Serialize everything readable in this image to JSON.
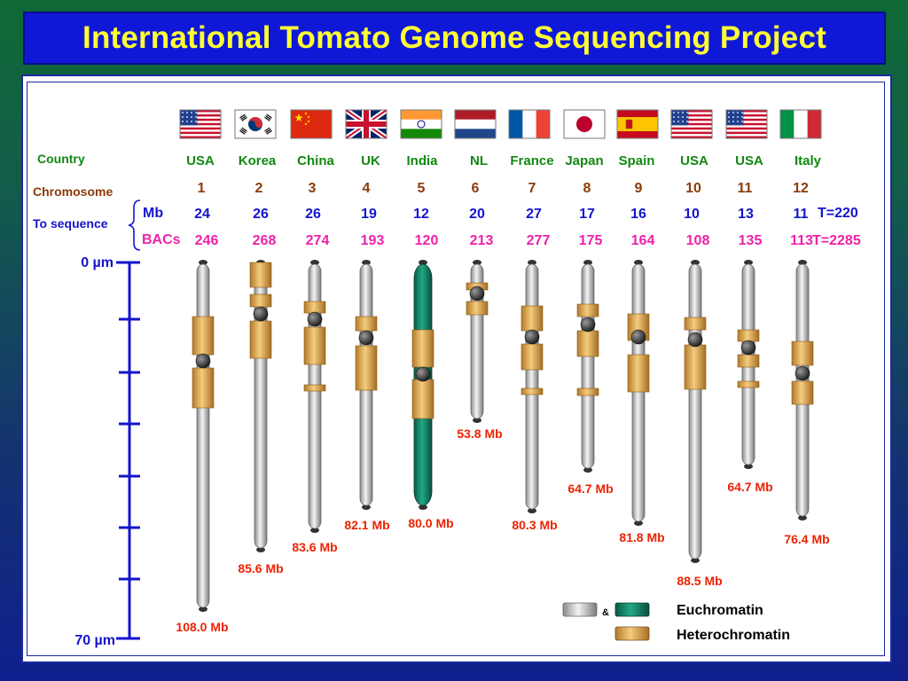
{
  "title": "International Tomato Genome Sequencing Project",
  "row_labels": {
    "country": "Country",
    "chromosome": "Chromosome",
    "to_sequence": "To sequence",
    "mb": "Mb",
    "bacs": "BACs"
  },
  "chromosomes": [
    {
      "country": "USA",
      "number": "1",
      "mb": "24",
      "bacs": "246",
      "size_label": "108.0 Mb",
      "flag": "usa-flag",
      "color": "gray"
    },
    {
      "country": "Korea",
      "number": "2",
      "mb": "26",
      "bacs": "268",
      "size_label": "85.6 Mb",
      "flag": "korea-flag",
      "color": "gray"
    },
    {
      "country": "China",
      "number": "3",
      "mb": "26",
      "bacs": "274",
      "size_label": "83.6 Mb",
      "flag": "china-flag",
      "color": "gray"
    },
    {
      "country": "UK",
      "number": "4",
      "mb": "19",
      "bacs": "193",
      "size_label": "82.1 Mb",
      "flag": "uk-flag",
      "color": "gray"
    },
    {
      "country": "India",
      "number": "5",
      "mb": "12",
      "bacs": "120",
      "size_label": "80.0 Mb",
      "flag": "india-flag",
      "color": "green"
    },
    {
      "country": "NL",
      "number": "6",
      "mb": "20",
      "bacs": "213",
      "size_label": "53.8 Mb",
      "flag": "netherlands-flag",
      "color": "gray"
    },
    {
      "country": "France",
      "number": "7",
      "mb": "27",
      "bacs": "277",
      "size_label": "80.3 Mb",
      "flag": "france-flag",
      "color": "gray"
    },
    {
      "country": "Japan",
      "number": "8",
      "mb": "17",
      "bacs": "175",
      "size_label": "64.7 Mb",
      "flag": "japan-flag",
      "color": "gray"
    },
    {
      "country": "Spain",
      "number": "9",
      "mb": "16",
      "bacs": "164",
      "size_label": "81.8 Mb",
      "flag": "spain-flag",
      "color": "gray"
    },
    {
      "country": "USA",
      "number": "10",
      "mb": "10",
      "bacs": "108",
      "size_label": "88.5 Mb",
      "flag": "usa-flag",
      "color": "gray"
    },
    {
      "country": "USA",
      "number": "11",
      "mb": "13",
      "bacs": "135",
      "size_label": "64.7 Mb",
      "flag": "usa-flag",
      "color": "gray"
    },
    {
      "country": "Italy",
      "number": "12",
      "mb": "11",
      "bacs": "113",
      "size_label": "76.4 Mb",
      "flag": "italy-flag",
      "color": "gray"
    }
  ],
  "totals": {
    "mb": "T=220",
    "bacs": "T=2285"
  },
  "scale": {
    "top_label": "0 µm",
    "bottom_label": "70 µm"
  },
  "legend": {
    "euchromatin": "Euchromatin",
    "heterochromatin": "Heterochromatin",
    "ampersand": "&"
  },
  "colors": {
    "title_bg": "#1018d8",
    "title_text": "#ffff33",
    "country": "#118811",
    "chromosome": "#8b3a0a",
    "blue_text": "#1414cc",
    "bacs": "#ee22aa",
    "size_label": "#ee2200",
    "heterochromatin": "#e6a84a",
    "euchromatin_gray": "#c8c8c8",
    "euchromatin_green": "#138a6a",
    "scale_bar": "#1414cc"
  }
}
